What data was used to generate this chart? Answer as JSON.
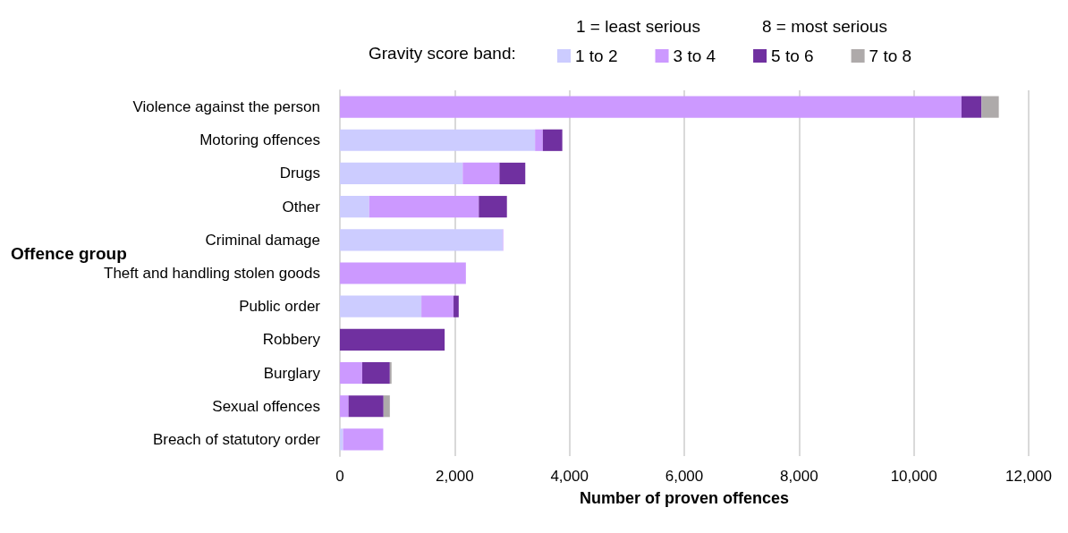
{
  "chart_data": {
    "type": "bar",
    "orientation": "horizontal",
    "stacked": true,
    "xlabel": "Number of proven offences",
    "ylabel": "Offence group",
    "legend_title": "Gravity score band:",
    "annotations": [
      "1 = least serious",
      "8 = most serious"
    ],
    "categories": [
      "Violence against the person",
      "Motoring offences",
      "Drugs",
      "Other",
      "Criminal damage",
      "Theft and handling stolen goods",
      "Public order",
      "Robbery",
      "Burglary",
      "Sexual offences",
      "Breach of statutory order"
    ],
    "series": [
      {
        "name": "1 to 2",
        "color": "#ccccff",
        "values": [
          0,
          3400,
          2140,
          510,
          2835,
          0,
          1420,
          0,
          0,
          0,
          55
        ]
      },
      {
        "name": "3 to 4",
        "color": "#cc99ff",
        "values": [
          10830,
          135,
          640,
          1910,
          10,
          2195,
          560,
          0,
          390,
          150,
          700
        ]
      },
      {
        "name": "5 to 6",
        "color": "#7030a0",
        "values": [
          350,
          340,
          450,
          490,
          0,
          0,
          90,
          1825,
          480,
          610,
          0
        ]
      },
      {
        "name": "7 to 8",
        "color": "#aeaaaa",
        "values": [
          300,
          0,
          0,
          0,
          0,
          0,
          0,
          0,
          30,
          110,
          0
        ]
      }
    ],
    "xlim": [
      0,
      12000
    ],
    "xticks": [
      0,
      {
        "value": 2000,
        "label": "2,000"
      },
      {
        "value": 4000,
        "label": "4,000"
      },
      {
        "value": 6000,
        "label": "6,000"
      },
      {
        "value": 8000,
        "label": "8,000"
      },
      {
        "value": 10000,
        "label": "10,000"
      },
      {
        "value": 12000,
        "label": "12,000"
      }
    ],
    "grid": "x",
    "legend": "top"
  }
}
